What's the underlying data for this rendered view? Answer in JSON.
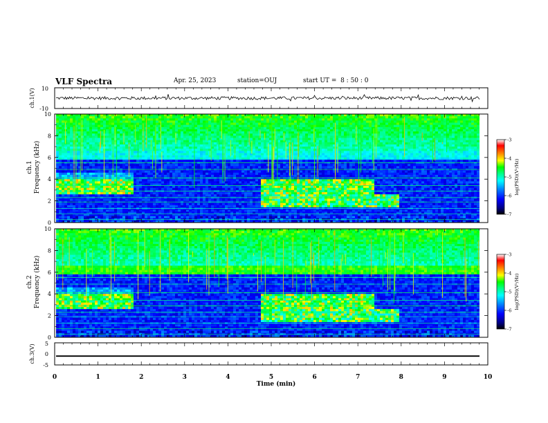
{
  "header": {
    "title": "VLF Spectra",
    "date": "Apr. 25, 2023",
    "station": "station=OUJ",
    "start": "start UT =  8 : 50 : 0"
  },
  "colors": {
    "background": "#ffffff",
    "axis": "#000000",
    "colormap": [
      "#000000",
      "#000080",
      "#0000ff",
      "#0080ff",
      "#00ffff",
      "#00ff80",
      "#00ff00",
      "#80ff00",
      "#ffff00",
      "#ff8000",
      "#ff0000",
      "#ffffff"
    ]
  },
  "chart_data": [
    {
      "type": "line",
      "id": "ch1-waveform",
      "ylabel": "ch.1(V)",
      "xlim": [
        0,
        10
      ],
      "ylim": [
        -10,
        10
      ],
      "ytick_labels": [
        "10",
        "-10"
      ],
      "series": [
        {
          "baseline": 0,
          "amplitude": 1.5
        }
      ]
    },
    {
      "type": "heatmap",
      "id": "ch1-spectrogram",
      "ylabel": "ch.1 Frequency (kHz)",
      "xlim": [
        0,
        10
      ],
      "ylim": [
        0,
        10
      ],
      "ytick_labels": [
        "0",
        "2",
        "4",
        "6",
        "8",
        "10"
      ],
      "colorbar": {
        "label": "log(PSD)(V²/Hz)",
        "range": [
          -7,
          -3
        ],
        "tick_labels": [
          "-3",
          "-4",
          "-5",
          "-6",
          "-7"
        ]
      }
    },
    {
      "type": "heatmap",
      "id": "ch2-spectrogram",
      "ylabel": "ch.2 Frequency (kHz)",
      "xlim": [
        0,
        10
      ],
      "ylim": [
        0,
        10
      ],
      "ytick_labels": [
        "0",
        "2",
        "4",
        "6",
        "8",
        "10"
      ],
      "colorbar": {
        "label": "log(PSD)(V²/Hz)",
        "range": [
          -7,
          -3
        ],
        "tick_labels": [
          "-3",
          "-4",
          "-5",
          "-6",
          "-7"
        ]
      }
    },
    {
      "type": "line",
      "id": "ch3-waveform",
      "ylabel": "ch.3(V)",
      "xlim": [
        0,
        10
      ],
      "ylim": [
        -5,
        5
      ],
      "ytick_labels": [
        "5",
        "0",
        "-5"
      ],
      "series": [
        {
          "baseline": -1,
          "amplitude": 0.3
        }
      ]
    }
  ],
  "x_axis": {
    "label": "Time (min)",
    "tick_labels": [
      "0",
      "1",
      "2",
      "3",
      "4",
      "5",
      "6",
      "7",
      "8",
      "9",
      "10"
    ]
  }
}
